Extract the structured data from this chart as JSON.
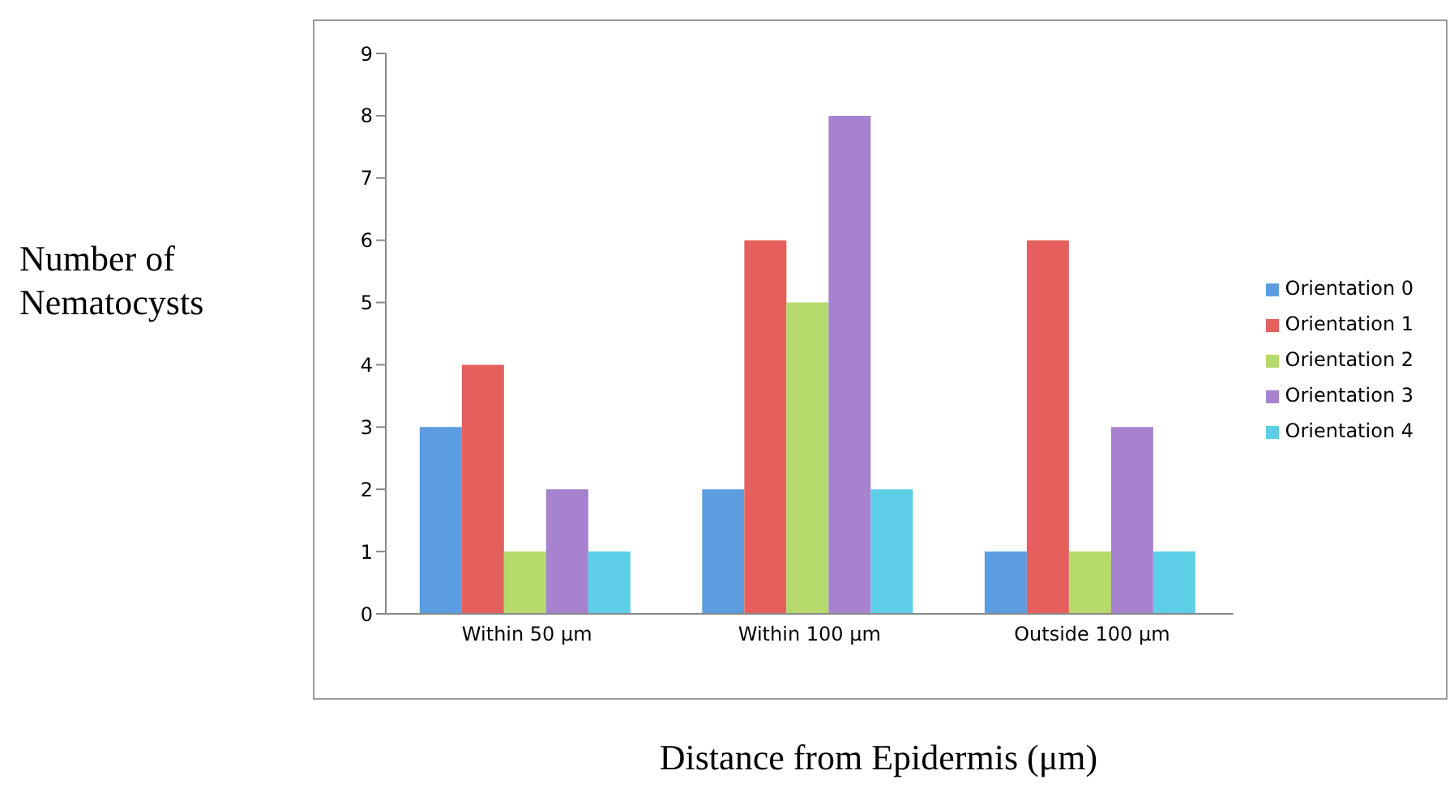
{
  "chart_data": {
    "type": "bar",
    "xlabel": "Distance from Epidermis (μm)",
    "ylabel": "Number of Nematocysts",
    "categories": [
      "Within 50 μm",
      "Within 100 μm",
      "Outside 100 μm"
    ],
    "series": [
      {
        "name": "Orientation 0",
        "color": "#5b9de0",
        "values": [
          3,
          2,
          1
        ]
      },
      {
        "name": "Orientation 1",
        "color": "#e5605c",
        "values": [
          4,
          6,
          6
        ]
      },
      {
        "name": "Orientation 2",
        "color": "#b5d96a",
        "values": [
          1,
          5,
          1
        ]
      },
      {
        "name": "Orientation 3",
        "color": "#a682cf",
        "values": [
          2,
          8,
          3
        ]
      },
      {
        "name": "Orientation 4",
        "color": "#5ccfe6",
        "values": [
          1,
          2,
          1
        ]
      }
    ],
    "ylim": [
      0,
      9
    ],
    "yticks": [
      0,
      1,
      2,
      3,
      4,
      5,
      6,
      7,
      8,
      9
    ],
    "grid": false,
    "legend": "right"
  }
}
